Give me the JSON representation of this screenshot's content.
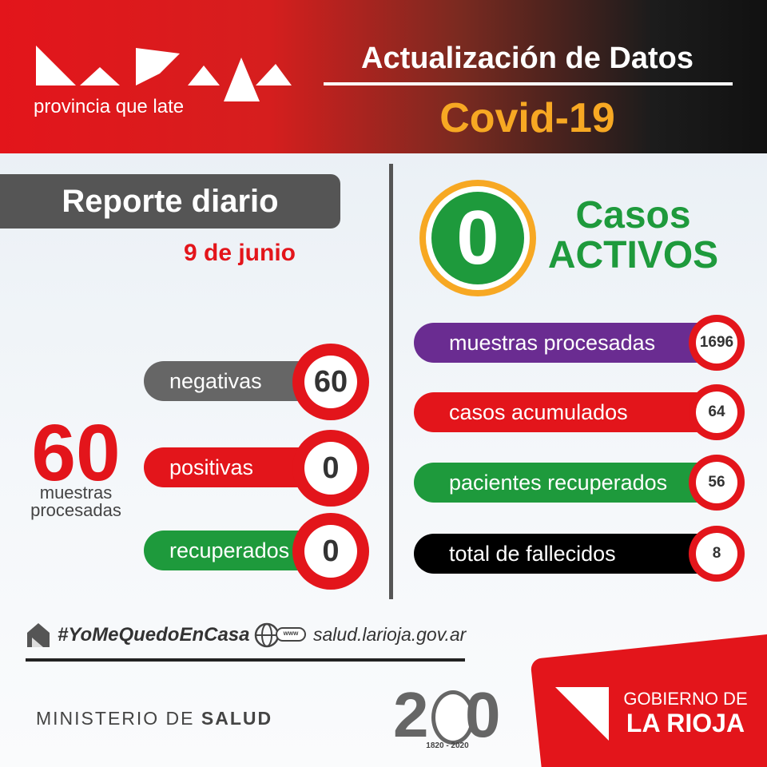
{
  "header": {
    "logo_tagline": "provincia que late",
    "title": "Actualización de Datos",
    "subtitle": "Covid-19"
  },
  "daily": {
    "title": "Reporte diario",
    "date": "9 de junio",
    "total": 60,
    "total_caption": [
      "muestras",
      "procesadas"
    ],
    "items": [
      {
        "label": "negativas",
        "value": 60
      },
      {
        "label": "positivas",
        "value": 0
      },
      {
        "label": "recuperados",
        "value": 0
      }
    ]
  },
  "active": {
    "value": 0,
    "label": [
      "Casos",
      "ACTIVOS"
    ]
  },
  "totals": [
    {
      "label": "muestras procesadas",
      "value": 1696
    },
    {
      "label": "casos acumulados",
      "value": 64
    },
    {
      "label": "pacientes recuperados",
      "value": 56
    },
    {
      "label": "total de fallecidos",
      "value": 8
    }
  ],
  "footer": {
    "hashtag": "#YoMeQuedoEnCasa",
    "web_icon": "www",
    "website": "salud.larioja.gov.ar",
    "ministry": [
      "MINISTERIO DE",
      "SALUD"
    ],
    "anniversary": [
      "2",
      "0",
      "1820 - 2020"
    ],
    "government": [
      "GOBIERNO DE",
      "LA RIOJA"
    ]
  }
}
